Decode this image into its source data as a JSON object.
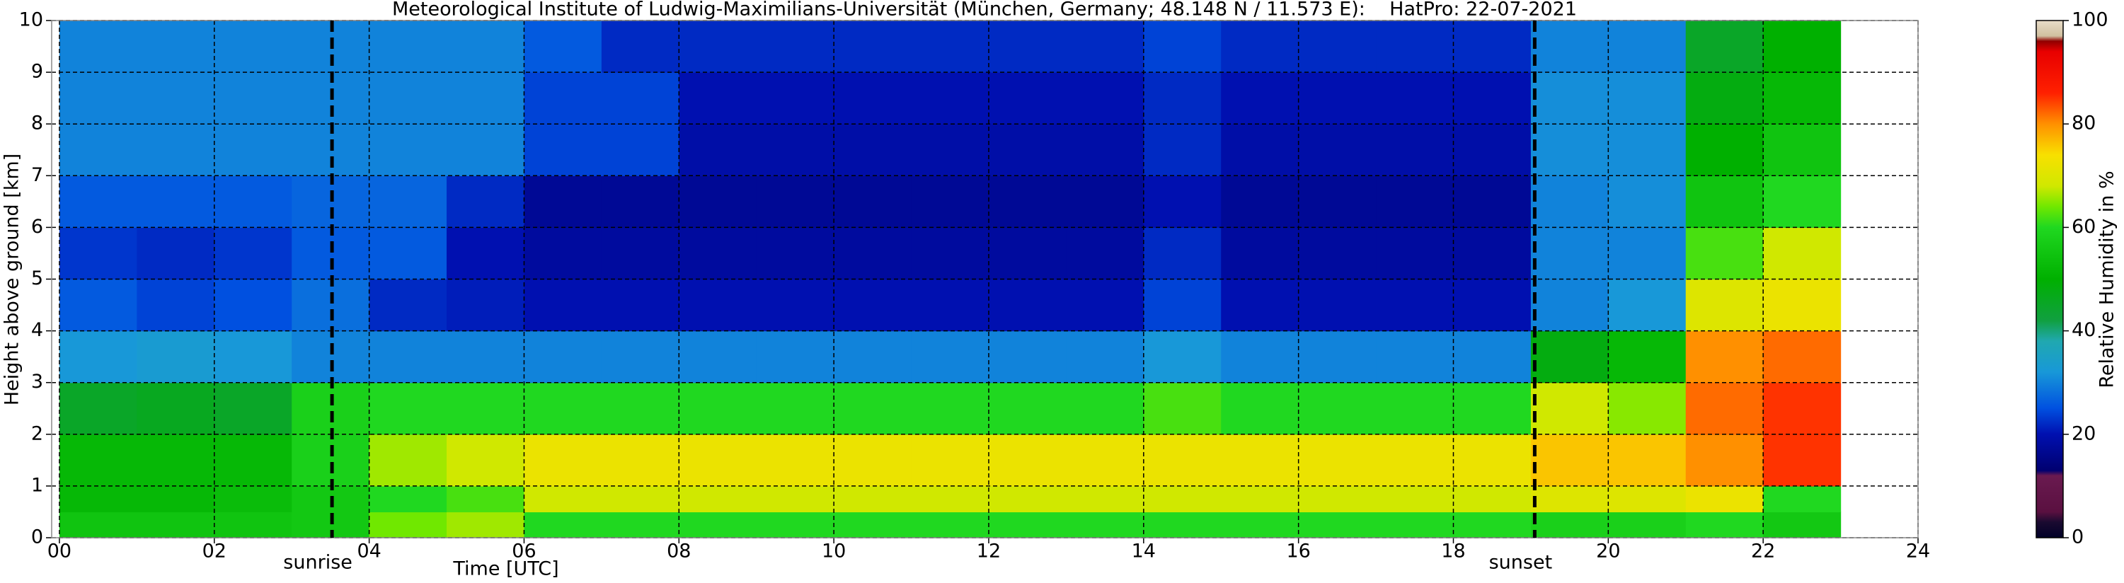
{
  "chart_data": {
    "type": "heatmap",
    "title": "Meteorological Institute of Ludwig-Maximilians-Universität (München, Germany; 48.148 N / 11.573 E):    HatPro: 22-07-2021",
    "x_label": "Time [UTC]",
    "y_label": "Height above ground [km]",
    "colorbar_label": "Relative Humidity in %",
    "xlim": [
      -0.1,
      24
    ],
    "ylim": [
      0,
      10
    ],
    "xticks": [
      {
        "value": 0,
        "label": "00"
      },
      {
        "value": 2,
        "label": "02"
      },
      {
        "value": 4,
        "label": "04"
      },
      {
        "value": 6,
        "label": "06"
      },
      {
        "value": 8,
        "label": "08"
      },
      10,
      12,
      14,
      16,
      18,
      20,
      22,
      24
    ],
    "yticks": [
      0,
      1,
      2,
      3,
      4,
      5,
      6,
      7,
      8,
      9,
      10
    ],
    "grid": true,
    "clim": [
      0,
      100
    ],
    "cticks": [
      0,
      20,
      40,
      60,
      80,
      100
    ],
    "colorscale": [
      [
        0,
        "#000028"
      ],
      [
        3,
        "#1a0a30"
      ],
      [
        5,
        "#5a1040"
      ],
      [
        12,
        "#6a1a50"
      ],
      [
        13,
        "#000070"
      ],
      [
        20,
        "#0010b0"
      ],
      [
        25,
        "#0050e0"
      ],
      [
        32,
        "#1898d8"
      ],
      [
        38,
        "#20a8b0"
      ],
      [
        42,
        "#10a040"
      ],
      [
        50,
        "#00b000"
      ],
      [
        60,
        "#20d820"
      ],
      [
        64,
        "#70e800"
      ],
      [
        68,
        "#d0e800"
      ],
      [
        74,
        "#f8e000"
      ],
      [
        80,
        "#ff9000"
      ],
      [
        86,
        "#ff2000"
      ],
      [
        94,
        "#e80000"
      ],
      [
        96,
        "#900000"
      ],
      [
        97,
        "#d0c0a0"
      ],
      [
        100,
        "#e8dcc8"
      ]
    ],
    "x_bins": [
      0,
      1,
      2,
      3,
      4,
      5,
      6,
      7,
      8,
      9,
      10,
      11,
      12,
      13,
      14,
      15,
      16,
      17,
      18,
      19,
      20,
      21,
      22,
      23
    ],
    "y_bins": [
      0,
      0.5,
      1,
      2,
      3,
      4,
      5,
      6,
      7,
      8,
      9,
      10
    ],
    "values": [
      [
        55,
        55,
        55,
        56,
        64,
        66,
        60,
        60,
        60,
        60,
        60,
        60,
        60,
        60,
        60,
        60,
        60,
        60,
        60,
        58,
        58,
        60,
        56
      ],
      [
        52,
        52,
        53,
        56,
        60,
        62,
        68,
        68,
        68,
        68,
        68,
        68,
        68,
        68,
        68,
        68,
        68,
        68,
        68,
        70,
        70,
        72,
        60
      ],
      [
        52,
        52,
        52,
        58,
        66,
        68,
        72,
        72,
        72,
        72,
        72,
        72,
        72,
        72,
        72,
        72,
        72,
        72,
        72,
        76,
        76,
        80,
        85
      ],
      [
        45,
        46,
        45,
        58,
        60,
        60,
        60,
        60,
        60,
        60,
        60,
        60,
        60,
        60,
        62,
        60,
        60,
        60,
        60,
        68,
        65,
        82,
        85
      ],
      [
        32,
        33,
        32,
        30,
        30,
        30,
        30,
        30,
        30,
        30,
        30,
        30,
        30,
        30,
        32,
        30,
        30,
        30,
        30,
        48,
        52,
        80,
        82
      ],
      [
        26,
        24,
        25,
        28,
        22,
        21,
        20,
        20,
        20,
        20,
        20,
        20,
        20,
        20,
        24,
        20,
        20,
        20,
        20,
        30,
        32,
        70,
        72
      ],
      [
        23,
        22,
        23,
        26,
        26,
        20,
        18,
        18,
        18,
        18,
        18,
        18,
        18,
        18,
        22,
        18,
        18,
        18,
        18,
        30,
        30,
        62,
        68
      ],
      [
        26,
        26,
        26,
        27,
        27,
        22,
        17,
        17,
        17,
        17,
        17,
        17,
        17,
        17,
        20,
        17,
        17,
        17,
        17,
        30,
        31,
        55,
        60
      ],
      [
        30,
        30,
        30,
        30,
        30,
        30,
        24,
        24,
        19,
        19,
        19,
        19,
        19,
        19,
        22,
        19,
        19,
        19,
        19,
        31,
        31,
        50,
        55
      ],
      [
        30,
        30,
        30,
        30,
        30,
        30,
        24,
        24,
        20,
        20,
        20,
        20,
        20,
        20,
        22,
        20,
        20,
        20,
        20,
        31,
        31,
        48,
        52
      ],
      [
        30,
        30,
        30,
        30,
        30,
        30,
        26,
        22,
        22,
        22,
        22,
        22,
        22,
        22,
        24,
        22,
        22,
        22,
        22,
        30,
        30,
        45,
        50
      ]
    ],
    "annotations": [
      {
        "x": 3.52,
        "label": "sunrise"
      },
      {
        "x": 19.05,
        "label": "sunset"
      }
    ]
  }
}
